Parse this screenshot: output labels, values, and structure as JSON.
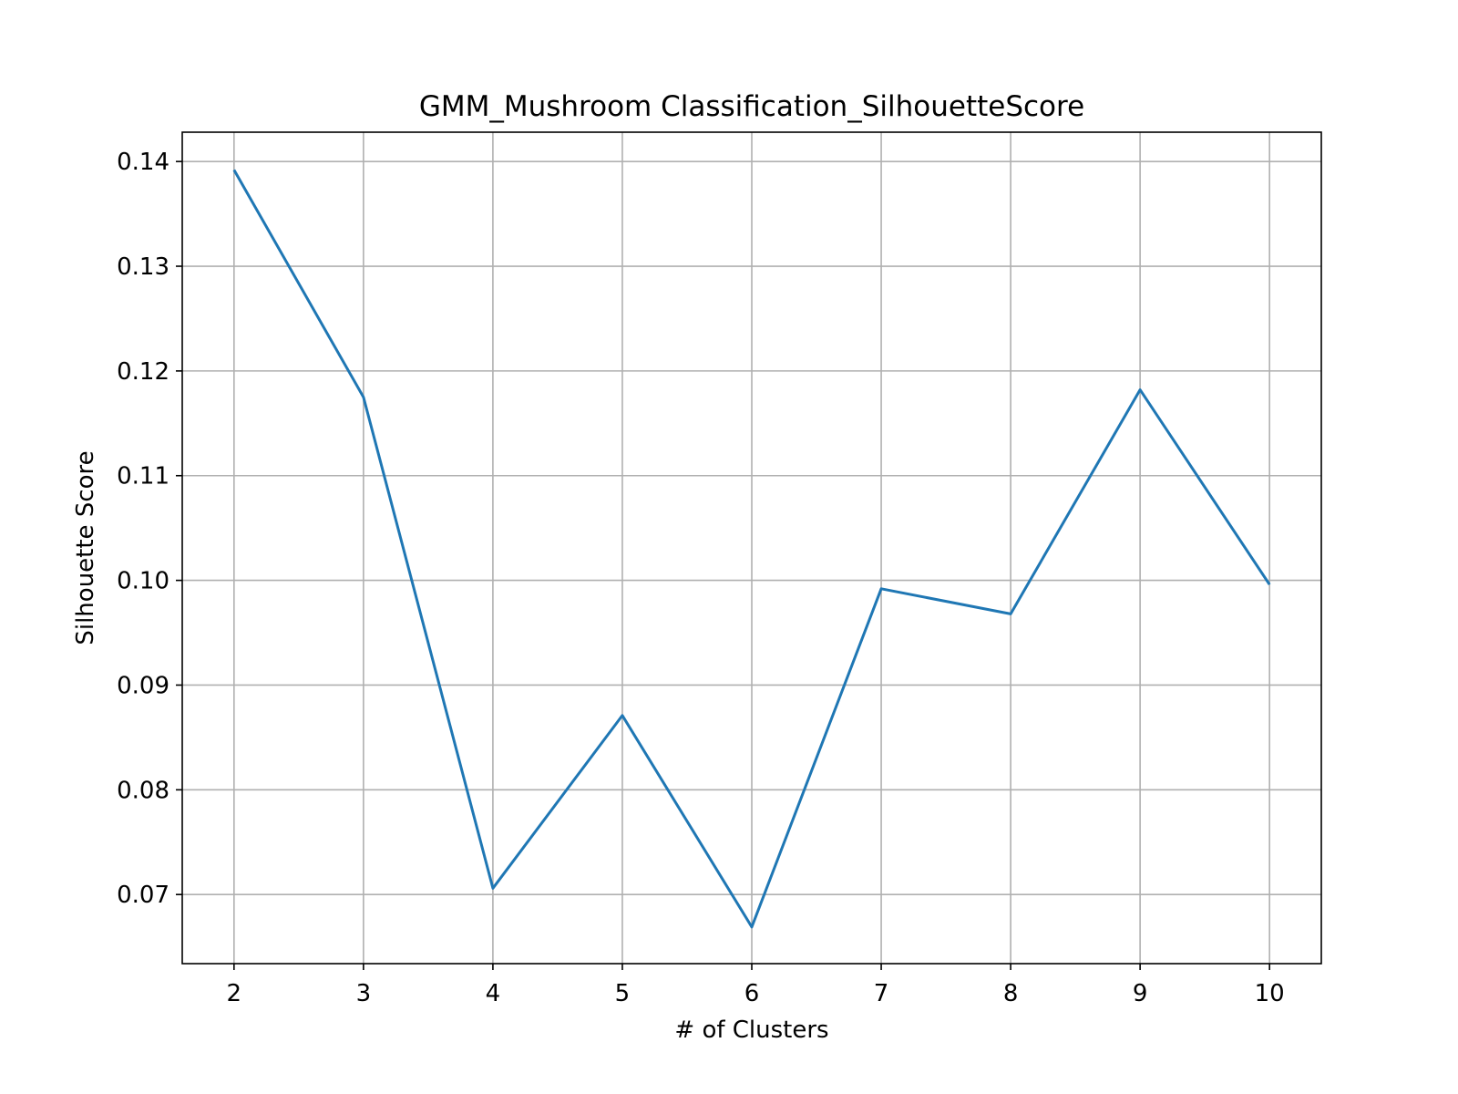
{
  "chart_data": {
    "type": "line",
    "title": "GMM_Mushroom Classification_SilhouetteScore",
    "xlabel": "# of Clusters",
    "ylabel": "Silhouette Score",
    "x": [
      2,
      3,
      4,
      5,
      6,
      7,
      8,
      9,
      10
    ],
    "series": [
      {
        "values": [
          0.1392,
          0.1175,
          0.0706,
          0.0871,
          0.0669,
          0.0992,
          0.0968,
          0.1182,
          0.0996
        ]
      }
    ],
    "x_ticks": [
      "2",
      "3",
      "4",
      "5",
      "6",
      "7",
      "8",
      "9",
      "10"
    ],
    "y_ticks": [
      "0.07",
      "0.08",
      "0.09",
      "0.10",
      "0.11",
      "0.12",
      "0.13",
      "0.14"
    ],
    "xlim": [
      1.6,
      10.4
    ],
    "ylim": [
      0.0634,
      0.1428
    ],
    "grid": true,
    "line_color": "#1f77b4"
  }
}
